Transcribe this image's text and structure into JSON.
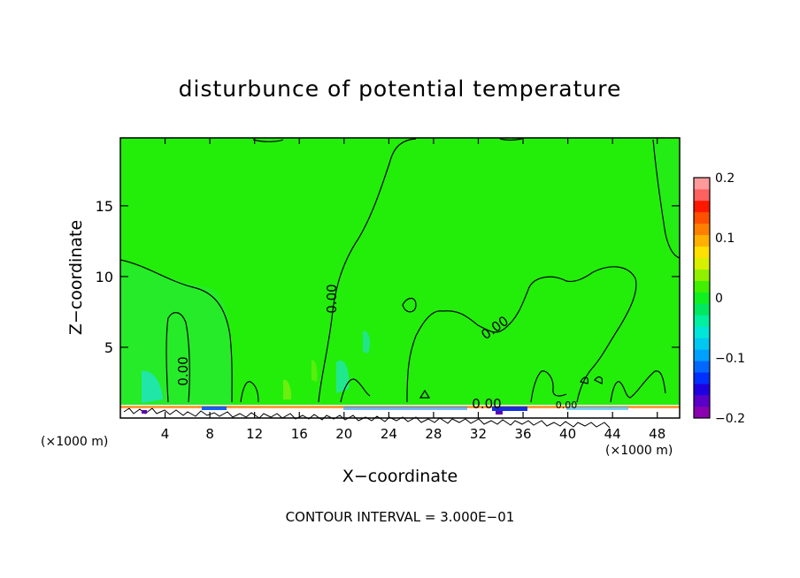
{
  "chart_data": {
    "type": "heatmap",
    "title": "disturbunce of potential temperature",
    "xlabel": "X−coordinate",
    "ylabel": "Z−coordinate",
    "x_unit_left": "(×1000 m)",
    "x_unit_right": "(×1000 m)",
    "xlim": [
      0,
      50
    ],
    "ylim": [
      0,
      19.8
    ],
    "x_ticks": [
      4,
      8,
      12,
      16,
      20,
      24,
      28,
      32,
      36,
      40,
      44,
      48
    ],
    "y_ticks": [
      5,
      10,
      15
    ],
    "colorbar": {
      "ticks": [
        "0.2",
        "0.1",
        "0",
        "−0.1",
        "−0.2"
      ],
      "tick_values": [
        0.2,
        0.1,
        0,
        -0.1,
        -0.2
      ],
      "range": [
        -0.2,
        0.2
      ],
      "colors": [
        "#8b00b0",
        "#5a00c8",
        "#1f00e0",
        "#0030ff",
        "#0068ff",
        "#00a0ff",
        "#00c8f0",
        "#00e6d8",
        "#00f0a0",
        "#00e860",
        "#10f020",
        "#40f000",
        "#90f000",
        "#d8f000",
        "#ffe000",
        "#ffb000",
        "#ff8000",
        "#ff5000",
        "#ff1800",
        "#ff6060",
        "#ff9a9a"
      ]
    },
    "contour_labels": [
      "0.00",
      "0.00",
      "0.00",
      "0.00",
      "0.00"
    ],
    "footer": "CONTOUR INTERVAL = 3.000E−01"
  }
}
